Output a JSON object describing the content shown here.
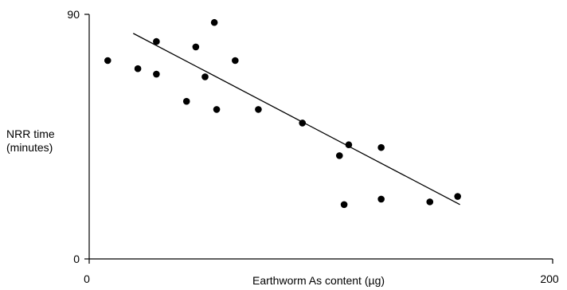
{
  "chart_data": {
    "type": "scatter",
    "title": "",
    "xlabel": "Earthworm As content (µg)",
    "ylabel_lines": [
      "NRR time",
      "(minutes)"
    ],
    "xlim": [
      0,
      200
    ],
    "ylim": [
      0,
      90
    ],
    "x_ticks": [
      {
        "value": 0,
        "label": "0"
      },
      {
        "value": 200,
        "label": "200"
      }
    ],
    "y_ticks": [
      {
        "value": 0,
        "label": "0"
      },
      {
        "value": 90,
        "label": "90"
      }
    ],
    "grid": false,
    "legend": "none",
    "points": [
      {
        "x": 8,
        "y": 73
      },
      {
        "x": 21,
        "y": 70
      },
      {
        "x": 29,
        "y": 80
      },
      {
        "x": 29,
        "y": 68
      },
      {
        "x": 42,
        "y": 58
      },
      {
        "x": 46,
        "y": 78
      },
      {
        "x": 50,
        "y": 67
      },
      {
        "x": 54,
        "y": 87
      },
      {
        "x": 55,
        "y": 55
      },
      {
        "x": 63,
        "y": 73
      },
      {
        "x": 73,
        "y": 55
      },
      {
        "x": 92,
        "y": 50
      },
      {
        "x": 108,
        "y": 38
      },
      {
        "x": 110,
        "y": 20
      },
      {
        "x": 112,
        "y": 42
      },
      {
        "x": 126,
        "y": 41
      },
      {
        "x": 126,
        "y": 22
      },
      {
        "x": 147,
        "y": 21
      },
      {
        "x": 159,
        "y": 23
      }
    ],
    "trendline": {
      "x": [
        19,
        160
      ],
      "y": [
        83,
        20
      ]
    }
  }
}
